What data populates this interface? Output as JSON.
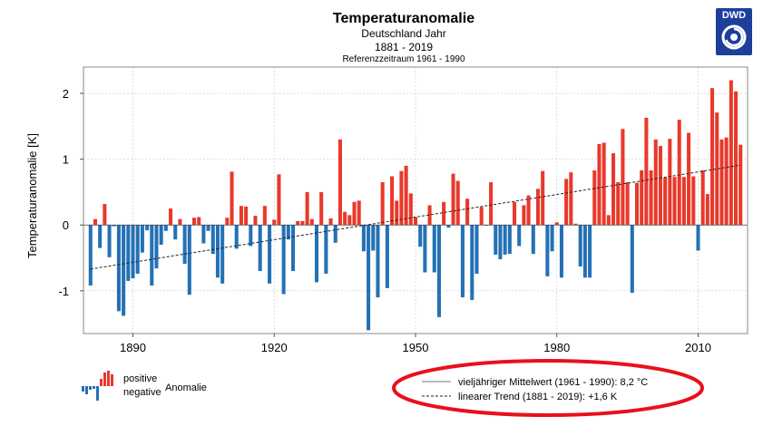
{
  "header": {
    "title": "Temperaturanomalie",
    "subtitle1": "Deutschland Jahr",
    "subtitle2": "1881 - 2019",
    "subtitle3": "Referenzzeitraum 1961 - 1990"
  },
  "logo": {
    "text": "DWD",
    "icon": "dwd-swirl-icon"
  },
  "colors": {
    "positive": "#e8392b",
    "negative": "#2471b5",
    "grid": "#c8c8c8"
  },
  "legend": {
    "positive": "positive",
    "negative": "negative",
    "anomalie": "Anomalie",
    "mean_line": "vieljähriger Mittelwert (1961 - 1990): 8,2 °C",
    "trend_line": "linearer Trend (1881 - 2019): +1,6 K"
  },
  "chart_data": {
    "type": "bar",
    "title": "Temperaturanomalie",
    "ylabel": "Temperaturanomalie [K]",
    "xlabel": "",
    "xlim": [
      1879.5,
      2020.5
    ],
    "ylim": [
      -1.65,
      2.4
    ],
    "xticks": [
      1890,
      1920,
      1950,
      1980,
      2010
    ],
    "yticks": [
      -1,
      0,
      1,
      2
    ],
    "ytick_labels": [
      "-1",
      "0",
      "1",
      "2"
    ],
    "years": [
      1881,
      1882,
      1883,
      1884,
      1885,
      1886,
      1887,
      1888,
      1889,
      1890,
      1891,
      1892,
      1893,
      1894,
      1895,
      1896,
      1897,
      1898,
      1899,
      1900,
      1901,
      1902,
      1903,
      1904,
      1905,
      1906,
      1907,
      1908,
      1909,
      1910,
      1911,
      1912,
      1913,
      1914,
      1915,
      1916,
      1917,
      1918,
      1919,
      1920,
      1921,
      1922,
      1923,
      1924,
      1925,
      1926,
      1927,
      1928,
      1929,
      1930,
      1931,
      1932,
      1933,
      1934,
      1935,
      1936,
      1937,
      1938,
      1939,
      1940,
      1941,
      1942,
      1943,
      1944,
      1945,
      1946,
      1947,
      1948,
      1949,
      1950,
      1951,
      1952,
      1953,
      1954,
      1955,
      1956,
      1957,
      1958,
      1959,
      1960,
      1961,
      1962,
      1963,
      1964,
      1965,
      1966,
      1967,
      1968,
      1969,
      1970,
      1971,
      1972,
      1973,
      1974,
      1975,
      1976,
      1977,
      1978,
      1979,
      1980,
      1981,
      1982,
      1983,
      1984,
      1985,
      1986,
      1987,
      1988,
      1989,
      1990,
      1991,
      1992,
      1993,
      1994,
      1995,
      1996,
      1997,
      1998,
      1999,
      2000,
      2001,
      2002,
      2003,
      2004,
      2005,
      2006,
      2007,
      2008,
      2009,
      2010,
      2011,
      2012,
      2013,
      2014,
      2015,
      2016,
      2017,
      2018,
      2019
    ],
    "values": [
      -0.92,
      0.09,
      -0.35,
      0.32,
      -0.49,
      -0.02,
      -1.31,
      -1.38,
      -0.85,
      -0.81,
      -0.74,
      -0.42,
      -0.08,
      -0.92,
      -0.66,
      -0.3,
      -0.09,
      0.25,
      -0.22,
      0.09,
      -0.59,
      -1.06,
      0.11,
      0.12,
      -0.28,
      -0.09,
      -0.44,
      -0.8,
      -0.89,
      0.11,
      0.81,
      -0.36,
      0.29,
      0.28,
      -0.32,
      0.14,
      -0.7,
      0.29,
      -0.89,
      0.08,
      0.77,
      -1.05,
      -0.22,
      -0.7,
      0.06,
      0.06,
      0.5,
      0.09,
      -0.87,
      0.5,
      -0.74,
      0.1,
      -0.27,
      1.3,
      0.2,
      0.15,
      0.35,
      0.37,
      -0.4,
      -1.6,
      -0.39,
      -1.1,
      0.65,
      -0.96,
      0.74,
      0.37,
      0.82,
      0.9,
      0.48,
      0.12,
      -0.33,
      -0.72,
      0.3,
      -0.72,
      -1.4,
      0.35,
      -0.04,
      0.78,
      0.67,
      -1.1,
      0.4,
      -1.14,
      -0.74,
      0.27,
      -0.01,
      0.65,
      -0.45,
      -0.52,
      -0.45,
      -0.44,
      0.35,
      -0.32,
      0.3,
      0.45,
      -0.44,
      0.55,
      0.82,
      -0.78,
      -0.4,
      0.04,
      -0.8,
      0.7,
      0.8,
      0.02,
      -0.63,
      -0.8,
      -0.8,
      0.83,
      1.23,
      1.25,
      0.15,
      1.09,
      0.65,
      1.46,
      0.65,
      -1.03,
      0.64,
      0.83,
      1.63,
      0.83,
      1.3,
      1.2,
      0.72,
      1.31,
      0.73,
      1.6,
      0.73,
      1.4,
      0.74,
      -0.39,
      0.83,
      0.47,
      2.08,
      1.71,
      1.3,
      1.33,
      2.2,
      2.03,
      1.22
    ],
    "trend": {
      "start_year": 1881,
      "start_value": -0.67,
      "end_year": 2019,
      "end_value": 0.91
    },
    "grid": true
  }
}
